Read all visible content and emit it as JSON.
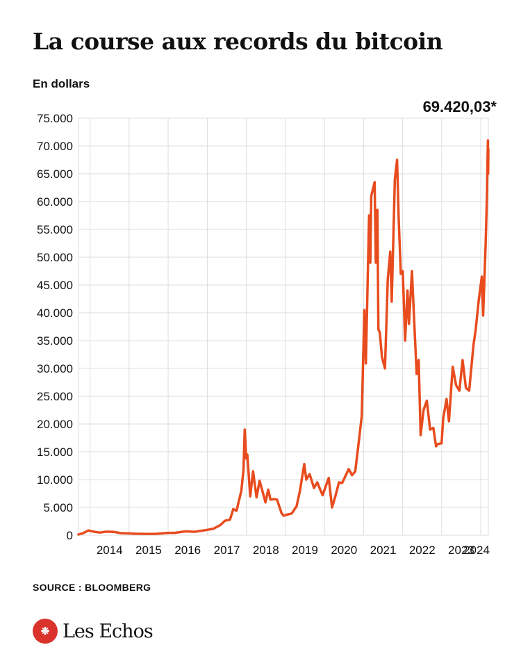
{
  "title": "La course aux records du bitcoin",
  "unit_label": "En dollars",
  "last_value_label": "69.420,03*",
  "source": "SOURCE : BLOOMBERG",
  "logo": {
    "name": "Les Echos",
    "icon": "les-echos-logo-icon"
  },
  "colors": {
    "line": "#e84c1e",
    "grid": "#dddddd",
    "text": "#111111",
    "logo": "#d9332b"
  },
  "chart_data": {
    "type": "line",
    "title": "La course aux records du bitcoin",
    "ylabel": "En dollars",
    "xlabel": "",
    "ylim": [
      0,
      75000
    ],
    "yticks": [
      0,
      5000,
      10000,
      15000,
      20000,
      25000,
      30000,
      35000,
      40000,
      45000,
      50000,
      55000,
      60000,
      65000,
      70000,
      75000
    ],
    "ytick_labels": [
      "0",
      "5.000",
      "10.000",
      "15.000",
      "20.000",
      "25.000",
      "30.000",
      "35.000",
      "40.000",
      "45.000",
      "50.000",
      "55.000",
      "60.000",
      "65.000",
      "70.000",
      "75.000"
    ],
    "xlim": [
      "2013-09-15",
      "2024-03-12"
    ],
    "xticks": [
      "2014-01-01",
      "2015-01-01",
      "2016-01-01",
      "2017-01-01",
      "2018-01-01",
      "2019-01-01",
      "2020-01-01",
      "2021-01-01",
      "2022-01-01",
      "2023-01-01",
      "2024-01-01"
    ],
    "xtick_labels": [
      "2014",
      "2015",
      "2016",
      "2017",
      "2018",
      "2019",
      "2020",
      "2021",
      "2022",
      "2023",
      "2024"
    ],
    "grid": true,
    "series": [
      {
        "name": "",
        "x": [
          "2013-09-15",
          "2013-11-01",
          "2013-12-15",
          "2014-02-15",
          "2014-04-01",
          "2014-06-01",
          "2014-08-15",
          "2014-10-15",
          "2014-12-31",
          "2015-03-01",
          "2015-06-01",
          "2015-09-01",
          "2015-12-31",
          "2016-03-01",
          "2016-06-15",
          "2016-09-01",
          "2016-12-31",
          "2017-03-01",
          "2017-05-01",
          "2017-06-15",
          "2017-08-01",
          "2017-09-01",
          "2017-10-01",
          "2017-11-15",
          "2017-12-05",
          "2017-12-17",
          "2017-12-31",
          "2018-01-10",
          "2018-02-06",
          "2018-03-05",
          "2018-04-06",
          "2018-05-05",
          "2018-06-29",
          "2018-07-24",
          "2018-08-15",
          "2018-09-15",
          "2018-10-15",
          "2018-11-25",
          "2018-12-15",
          "2019-01-15",
          "2019-03-01",
          "2019-04-15",
          "2019-05-15",
          "2019-06-26",
          "2019-07-15",
          "2019-08-15",
          "2019-09-25",
          "2019-10-26",
          "2019-12-15",
          "2020-02-10",
          "2020-03-12",
          "2020-04-15",
          "2020-05-15",
          "2020-06-15",
          "2020-07-31",
          "2020-08-15",
          "2020-09-15",
          "2020-10-15",
          "2020-11-15",
          "2020-12-15",
          "2021-01-08",
          "2021-01-22",
          "2021-02-21",
          "2021-03-05",
          "2021-03-13",
          "2021-04-14",
          "2021-04-25",
          "2021-05-10",
          "2021-05-19",
          "2021-06-01",
          "2021-06-22",
          "2021-07-20",
          "2021-08-15",
          "2021-09-07",
          "2021-09-21",
          "2021-10-20",
          "2021-11-10",
          "2021-11-25",
          "2021-12-15",
          "2022-01-02",
          "2022-01-24",
          "2022-02-15",
          "2022-03-01",
          "2022-03-29",
          "2022-04-15",
          "2022-05-12",
          "2022-05-31",
          "2022-06-18",
          "2022-07-15",
          "2022-08-15",
          "2022-09-15",
          "2022-10-15",
          "2022-11-09",
          "2022-11-25",
          "2022-12-31",
          "2023-01-15",
          "2023-02-15",
          "2023-03-10",
          "2023-04-14",
          "2023-05-15",
          "2023-06-15",
          "2023-07-15",
          "2023-08-15",
          "2023-09-15",
          "2023-10-24",
          "2023-11-15",
          "2023-12-15",
          "2024-01-11",
          "2024-01-23",
          "2024-02-15",
          "2024-02-28",
          "2024-03-05",
          "2024-03-08",
          "2024-03-10",
          "2024-03-12"
        ],
        "values": [
          130,
          400,
          850,
          600,
          480,
          640,
          590,
          380,
          320,
          260,
          240,
          235,
          430,
          420,
          700,
          610,
          960,
          1190,
          1800,
          2600,
          2800,
          4700,
          4400,
          8000,
          11700,
          19000,
          13800,
          14500,
          7000,
          11500,
          6800,
          9800,
          5900,
          8200,
          6400,
          6500,
          6400,
          4000,
          3500,
          3700,
          3900,
          5200,
          7800,
          12800,
          10000,
          11000,
          8500,
          9500,
          7200,
          10300,
          5000,
          7200,
          9500,
          9400,
          11300,
          11900,
          10800,
          11500,
          16500,
          21500,
          40500,
          30900,
          57500,
          49000,
          61000,
          63500,
          49000,
          58500,
          37000,
          36500,
          32000,
          30000,
          46000,
          51000,
          42000,
          64000,
          67500,
          57000,
          47000,
          47500,
          35000,
          44000,
          38000,
          47500,
          40000,
          29000,
          31500,
          18000,
          22500,
          24200,
          19000,
          19300,
          16000,
          16400,
          16550,
          21000,
          24500,
          20500,
          30300,
          27000,
          26000,
          31500,
          26500,
          26000,
          34000,
          37000,
          42500,
          46500,
          39500,
          52000,
          61000,
          68000,
          71000,
          65000,
          69420
        ]
      }
    ]
  }
}
